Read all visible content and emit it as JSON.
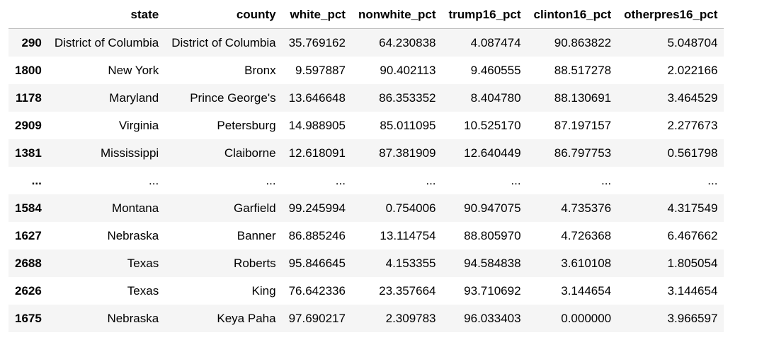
{
  "table": {
    "columns": [
      "",
      "state",
      "county",
      "white_pct",
      "nonwhite_pct",
      "trump16_pct",
      "clinton16_pct",
      "otherpres16_pct"
    ],
    "rows": [
      [
        "290",
        "District of Columbia",
        "District of Columbia",
        "35.769162",
        "64.230838",
        "4.087474",
        "90.863822",
        "5.048704"
      ],
      [
        "1800",
        "New York",
        "Bronx",
        "9.597887",
        "90.402113",
        "9.460555",
        "88.517278",
        "2.022166"
      ],
      [
        "1178",
        "Maryland",
        "Prince George's",
        "13.646648",
        "86.353352",
        "8.404780",
        "88.130691",
        "3.464529"
      ],
      [
        "2909",
        "Virginia",
        "Petersburg",
        "14.988905",
        "85.011095",
        "10.525170",
        "87.197157",
        "2.277673"
      ],
      [
        "1381",
        "Mississippi",
        "Claiborne",
        "12.618091",
        "87.381909",
        "12.640449",
        "86.797753",
        "0.561798"
      ],
      [
        "...",
        "...",
        "...",
        "...",
        "...",
        "...",
        "...",
        "..."
      ],
      [
        "1584",
        "Montana",
        "Garfield",
        "99.245994",
        "0.754006",
        "90.947075",
        "4.735376",
        "4.317549"
      ],
      [
        "1627",
        "Nebraska",
        "Banner",
        "86.885246",
        "13.114754",
        "88.805970",
        "4.726368",
        "6.467662"
      ],
      [
        "2688",
        "Texas",
        "Roberts",
        "95.846645",
        "4.153355",
        "94.584838",
        "3.610108",
        "1.805054"
      ],
      [
        "2626",
        "Texas",
        "King",
        "76.642336",
        "23.357664",
        "93.710692",
        "3.144654",
        "3.144654"
      ],
      [
        "1675",
        "Nebraska",
        "Keya Paha",
        "97.690217",
        "2.309783",
        "96.033403",
        "0.000000",
        "3.966597"
      ]
    ]
  }
}
